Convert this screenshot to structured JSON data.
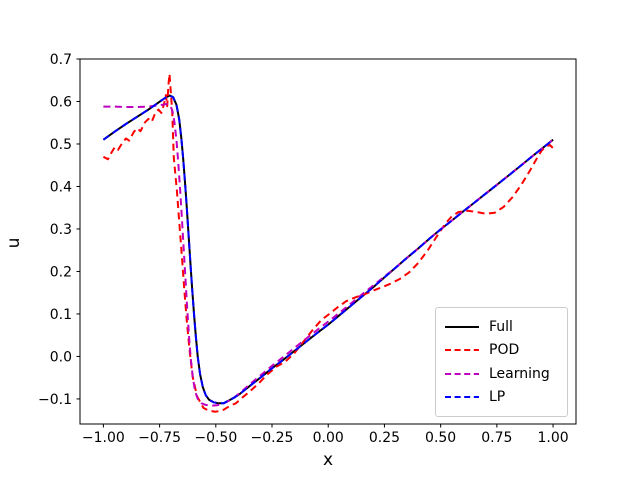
{
  "figure": {
    "background": "#ffffff"
  },
  "axes": {
    "xlabel": "x",
    "ylabel": "u",
    "xlim": [
      -1.104,
      1.102
    ],
    "ylim": [
      -0.159,
      0.7
    ],
    "grid": false,
    "x_ticks": [
      {
        "value": -1.0,
        "label": "−1.00"
      },
      {
        "value": -0.75,
        "label": "−0.75"
      },
      {
        "value": -0.5,
        "label": "−0.50"
      },
      {
        "value": -0.25,
        "label": "−0.25"
      },
      {
        "value": 0.0,
        "label": "0.00"
      },
      {
        "value": 0.25,
        "label": "0.25"
      },
      {
        "value": 0.5,
        "label": "0.50"
      },
      {
        "value": 0.75,
        "label": "0.75"
      },
      {
        "value": 1.0,
        "label": "1.00"
      }
    ],
    "y_ticks": [
      {
        "value": 0.7,
        "label": "0.7"
      },
      {
        "value": 0.6,
        "label": "0.6"
      },
      {
        "value": 0.5,
        "label": "0.5"
      },
      {
        "value": 0.4,
        "label": "0.4"
      },
      {
        "value": 0.3,
        "label": "0.3"
      },
      {
        "value": 0.2,
        "label": "0.2"
      },
      {
        "value": 0.1,
        "label": "0.1"
      },
      {
        "value": 0.0,
        "label": "0.0"
      },
      {
        "value": -0.1,
        "label": "−0.1"
      }
    ]
  },
  "legend": {
    "position": "lower right",
    "labels": [
      "Full",
      "POD",
      "Learning",
      "LP"
    ]
  },
  "chart_data": {
    "type": "line",
    "title": "",
    "xlabel": "x",
    "ylabel": "u",
    "xlim": [
      -1.104,
      1.102
    ],
    "ylim": [
      -0.159,
      0.7
    ],
    "legend_position": "lower right",
    "series": [
      {
        "name": "Full",
        "color": "#000000",
        "linestyle": "solid",
        "dash": "none",
        "points": [
          [
            -1.0,
            0.51
          ],
          [
            -0.95,
            0.529
          ],
          [
            -0.9,
            0.547
          ],
          [
            -0.85,
            0.564
          ],
          [
            -0.8,
            0.581
          ],
          [
            -0.77,
            0.592
          ],
          [
            -0.74,
            0.603
          ],
          [
            -0.72,
            0.61
          ],
          [
            -0.705,
            0.614
          ],
          [
            -0.69,
            0.61
          ],
          [
            -0.675,
            0.592
          ],
          [
            -0.663,
            0.558
          ],
          [
            -0.653,
            0.512
          ],
          [
            -0.645,
            0.465
          ],
          [
            -0.637,
            0.41
          ],
          [
            -0.629,
            0.35
          ],
          [
            -0.621,
            0.285
          ],
          [
            -0.613,
            0.22
          ],
          [
            -0.605,
            0.158
          ],
          [
            -0.597,
            0.1
          ],
          [
            -0.589,
            0.048
          ],
          [
            -0.58,
            -0.002
          ],
          [
            -0.57,
            -0.042
          ],
          [
            -0.558,
            -0.072
          ],
          [
            -0.545,
            -0.091
          ],
          [
            -0.53,
            -0.102
          ],
          [
            -0.51,
            -0.108
          ],
          [
            -0.49,
            -0.11
          ],
          [
            -0.465,
            -0.11
          ],
          [
            -0.44,
            -0.103
          ],
          [
            -0.415,
            -0.096
          ],
          [
            -0.39,
            -0.087
          ],
          [
            -0.35,
            -0.07
          ],
          [
            -0.3,
            -0.049
          ],
          [
            -0.25,
            -0.028
          ],
          [
            -0.2,
            -0.008
          ],
          [
            -0.15,
            0.013
          ],
          [
            -0.1,
            0.034
          ],
          [
            -0.05,
            0.055
          ],
          [
            0.0,
            0.075
          ],
          [
            0.05,
            0.097
          ],
          [
            0.1,
            0.119
          ],
          [
            0.15,
            0.141
          ],
          [
            0.2,
            0.163
          ],
          [
            0.25,
            0.186
          ],
          [
            0.3,
            0.209
          ],
          [
            0.35,
            0.232
          ],
          [
            0.4,
            0.254
          ],
          [
            0.45,
            0.277
          ],
          [
            0.5,
            0.299
          ],
          [
            0.55,
            0.32
          ],
          [
            0.6,
            0.341
          ],
          [
            0.65,
            0.362
          ],
          [
            0.7,
            0.383
          ],
          [
            0.75,
            0.404
          ],
          [
            0.8,
            0.425
          ],
          [
            0.85,
            0.446
          ],
          [
            0.9,
            0.468
          ],
          [
            0.95,
            0.489
          ],
          [
            1.0,
            0.51
          ]
        ]
      },
      {
        "name": "POD",
        "color": "#ff0000",
        "linestyle": "dashed",
        "dash": "7 4.5",
        "points": [
          [
            -1.0,
            0.47
          ],
          [
            -0.98,
            0.464
          ],
          [
            -0.965,
            0.479
          ],
          [
            -0.95,
            0.492
          ],
          [
            -0.935,
            0.486
          ],
          [
            -0.915,
            0.503
          ],
          [
            -0.9,
            0.513
          ],
          [
            -0.885,
            0.508
          ],
          [
            -0.865,
            0.528
          ],
          [
            -0.85,
            0.537
          ],
          [
            -0.835,
            0.53
          ],
          [
            -0.815,
            0.551
          ],
          [
            -0.8,
            0.559
          ],
          [
            -0.785,
            0.552
          ],
          [
            -0.768,
            0.574
          ],
          [
            -0.755,
            0.581
          ],
          [
            -0.742,
            0.573
          ],
          [
            -0.73,
            0.595
          ],
          [
            -0.722,
            0.615
          ],
          [
            -0.716,
            0.589
          ],
          [
            -0.711,
            0.638
          ],
          [
            -0.706,
            0.665
          ],
          [
            -0.7,
            0.622
          ],
          [
            -0.694,
            0.578
          ],
          [
            -0.687,
            0.468
          ],
          [
            -0.673,
            0.39
          ],
          [
            -0.662,
            0.312
          ],
          [
            -0.651,
            0.235
          ],
          [
            -0.64,
            0.157
          ],
          [
            -0.628,
            0.078
          ],
          [
            -0.617,
            0.016
          ],
          [
            -0.603,
            -0.047
          ],
          [
            -0.583,
            -0.094
          ],
          [
            -0.555,
            -0.121
          ],
          [
            -0.53,
            -0.128
          ],
          [
            -0.5,
            -0.13
          ],
          [
            -0.47,
            -0.127
          ],
          [
            -0.44,
            -0.117
          ],
          [
            -0.41,
            -0.11
          ],
          [
            -0.38,
            -0.096
          ],
          [
            -0.35,
            -0.083
          ],
          [
            -0.31,
            -0.064
          ],
          [
            -0.27,
            -0.042
          ],
          [
            -0.23,
            -0.024
          ],
          [
            -0.19,
            -0.012
          ],
          [
            -0.15,
            0.008
          ],
          [
            -0.11,
            0.035
          ],
          [
            -0.07,
            0.062
          ],
          [
            -0.03,
            0.086
          ],
          [
            0.0,
            0.098
          ],
          [
            0.04,
            0.115
          ],
          [
            0.08,
            0.13
          ],
          [
            0.12,
            0.139
          ],
          [
            0.16,
            0.146
          ],
          [
            0.2,
            0.155
          ],
          [
            0.24,
            0.163
          ],
          [
            0.28,
            0.172
          ],
          [
            0.32,
            0.183
          ],
          [
            0.36,
            0.198
          ],
          [
            0.4,
            0.22
          ],
          [
            0.44,
            0.248
          ],
          [
            0.48,
            0.28
          ],
          [
            0.52,
            0.312
          ],
          [
            0.55,
            0.33
          ],
          [
            0.58,
            0.34
          ],
          [
            0.62,
            0.343
          ],
          [
            0.66,
            0.34
          ],
          [
            0.7,
            0.336
          ],
          [
            0.74,
            0.338
          ],
          [
            0.78,
            0.352
          ],
          [
            0.82,
            0.375
          ],
          [
            0.86,
            0.405
          ],
          [
            0.9,
            0.44
          ],
          [
            0.93,
            0.468
          ],
          [
            0.95,
            0.485
          ],
          [
            0.97,
            0.494
          ],
          [
            0.985,
            0.498
          ],
          [
            1.0,
            0.49
          ]
        ]
      },
      {
        "name": "Learning",
        "color": "#bf00bf",
        "linestyle": "dashed",
        "dash": "7 4.5",
        "points": [
          [
            -1.0,
            0.588
          ],
          [
            -0.95,
            0.588
          ],
          [
            -0.9,
            0.587
          ],
          [
            -0.85,
            0.587
          ],
          [
            -0.8,
            0.588
          ],
          [
            -0.77,
            0.59
          ],
          [
            -0.74,
            0.592
          ],
          [
            -0.72,
            0.594
          ],
          [
            -0.71,
            0.593
          ],
          [
            -0.7,
            0.588
          ],
          [
            -0.692,
            0.576
          ],
          [
            -0.684,
            0.552
          ],
          [
            -0.675,
            0.508
          ],
          [
            -0.667,
            0.455
          ],
          [
            -0.659,
            0.393
          ],
          [
            -0.651,
            0.325
          ],
          [
            -0.643,
            0.253
          ],
          [
            -0.635,
            0.182
          ],
          [
            -0.627,
            0.112
          ],
          [
            -0.619,
            0.048
          ],
          [
            -0.611,
            -0.006
          ],
          [
            -0.602,
            -0.05
          ],
          [
            -0.592,
            -0.082
          ],
          [
            -0.58,
            -0.1
          ],
          [
            -0.565,
            -0.11
          ],
          [
            -0.545,
            -0.114
          ],
          [
            -0.52,
            -0.116
          ],
          [
            -0.495,
            -0.115
          ],
          [
            -0.47,
            -0.112
          ],
          [
            -0.445,
            -0.105
          ],
          [
            -0.42,
            -0.097
          ],
          [
            -0.39,
            -0.085
          ],
          [
            -0.35,
            -0.066
          ],
          [
            -0.3,
            -0.044
          ],
          [
            -0.25,
            -0.022
          ],
          [
            -0.2,
            -0.001
          ],
          [
            -0.15,
            0.02
          ],
          [
            -0.1,
            0.041
          ],
          [
            -0.05,
            0.062
          ],
          [
            0.0,
            0.082
          ],
          [
            0.05,
            0.103
          ],
          [
            0.1,
            0.124
          ],
          [
            0.15,
            0.146
          ],
          [
            0.2,
            0.167
          ],
          [
            0.25,
            0.188
          ],
          [
            0.3,
            0.209
          ],
          [
            0.35,
            0.232
          ],
          [
            0.4,
            0.254
          ],
          [
            0.45,
            0.277
          ],
          [
            0.5,
            0.299
          ],
          [
            0.55,
            0.32
          ],
          [
            0.6,
            0.341
          ],
          [
            0.65,
            0.362
          ],
          [
            0.7,
            0.383
          ],
          [
            0.75,
            0.404
          ],
          [
            0.8,
            0.425
          ],
          [
            0.85,
            0.446
          ],
          [
            0.9,
            0.468
          ],
          [
            0.95,
            0.489
          ],
          [
            1.0,
            0.51
          ]
        ]
      },
      {
        "name": "LP",
        "color": "#0000ff",
        "linestyle": "dashed",
        "dash": "7 4.5",
        "points": [
          [
            -1.0,
            0.51
          ],
          [
            -0.95,
            0.529
          ],
          [
            -0.9,
            0.547
          ],
          [
            -0.85,
            0.564
          ],
          [
            -0.8,
            0.581
          ],
          [
            -0.77,
            0.592
          ],
          [
            -0.74,
            0.603
          ],
          [
            -0.72,
            0.61
          ],
          [
            -0.705,
            0.614
          ],
          [
            -0.69,
            0.61
          ],
          [
            -0.675,
            0.592
          ],
          [
            -0.663,
            0.558
          ],
          [
            -0.653,
            0.512
          ],
          [
            -0.645,
            0.465
          ],
          [
            -0.637,
            0.41
          ],
          [
            -0.629,
            0.35
          ],
          [
            -0.621,
            0.285
          ],
          [
            -0.613,
            0.22
          ],
          [
            -0.605,
            0.158
          ],
          [
            -0.597,
            0.1
          ],
          [
            -0.589,
            0.048
          ],
          [
            -0.58,
            -0.002
          ],
          [
            -0.57,
            -0.042
          ],
          [
            -0.558,
            -0.072
          ],
          [
            -0.545,
            -0.091
          ],
          [
            -0.53,
            -0.102
          ],
          [
            -0.51,
            -0.108
          ],
          [
            -0.49,
            -0.11
          ],
          [
            -0.465,
            -0.11
          ],
          [
            -0.44,
            -0.103
          ],
          [
            -0.415,
            -0.096
          ],
          [
            -0.39,
            -0.087
          ],
          [
            -0.35,
            -0.07
          ],
          [
            -0.3,
            -0.049
          ],
          [
            -0.25,
            -0.028
          ],
          [
            -0.2,
            -0.008
          ],
          [
            -0.15,
            0.013
          ],
          [
            -0.1,
            0.034
          ],
          [
            -0.05,
            0.055
          ],
          [
            0.0,
            0.075
          ],
          [
            0.05,
            0.097
          ],
          [
            0.1,
            0.119
          ],
          [
            0.15,
            0.141
          ],
          [
            0.2,
            0.163
          ],
          [
            0.25,
            0.186
          ],
          [
            0.3,
            0.209
          ],
          [
            0.35,
            0.232
          ],
          [
            0.4,
            0.254
          ],
          [
            0.45,
            0.277
          ],
          [
            0.5,
            0.299
          ],
          [
            0.55,
            0.32
          ],
          [
            0.6,
            0.341
          ],
          [
            0.65,
            0.362
          ],
          [
            0.7,
            0.383
          ],
          [
            0.75,
            0.404
          ],
          [
            0.8,
            0.425
          ],
          [
            0.85,
            0.446
          ],
          [
            0.9,
            0.468
          ],
          [
            0.95,
            0.489
          ],
          [
            1.0,
            0.51
          ]
        ]
      }
    ]
  }
}
